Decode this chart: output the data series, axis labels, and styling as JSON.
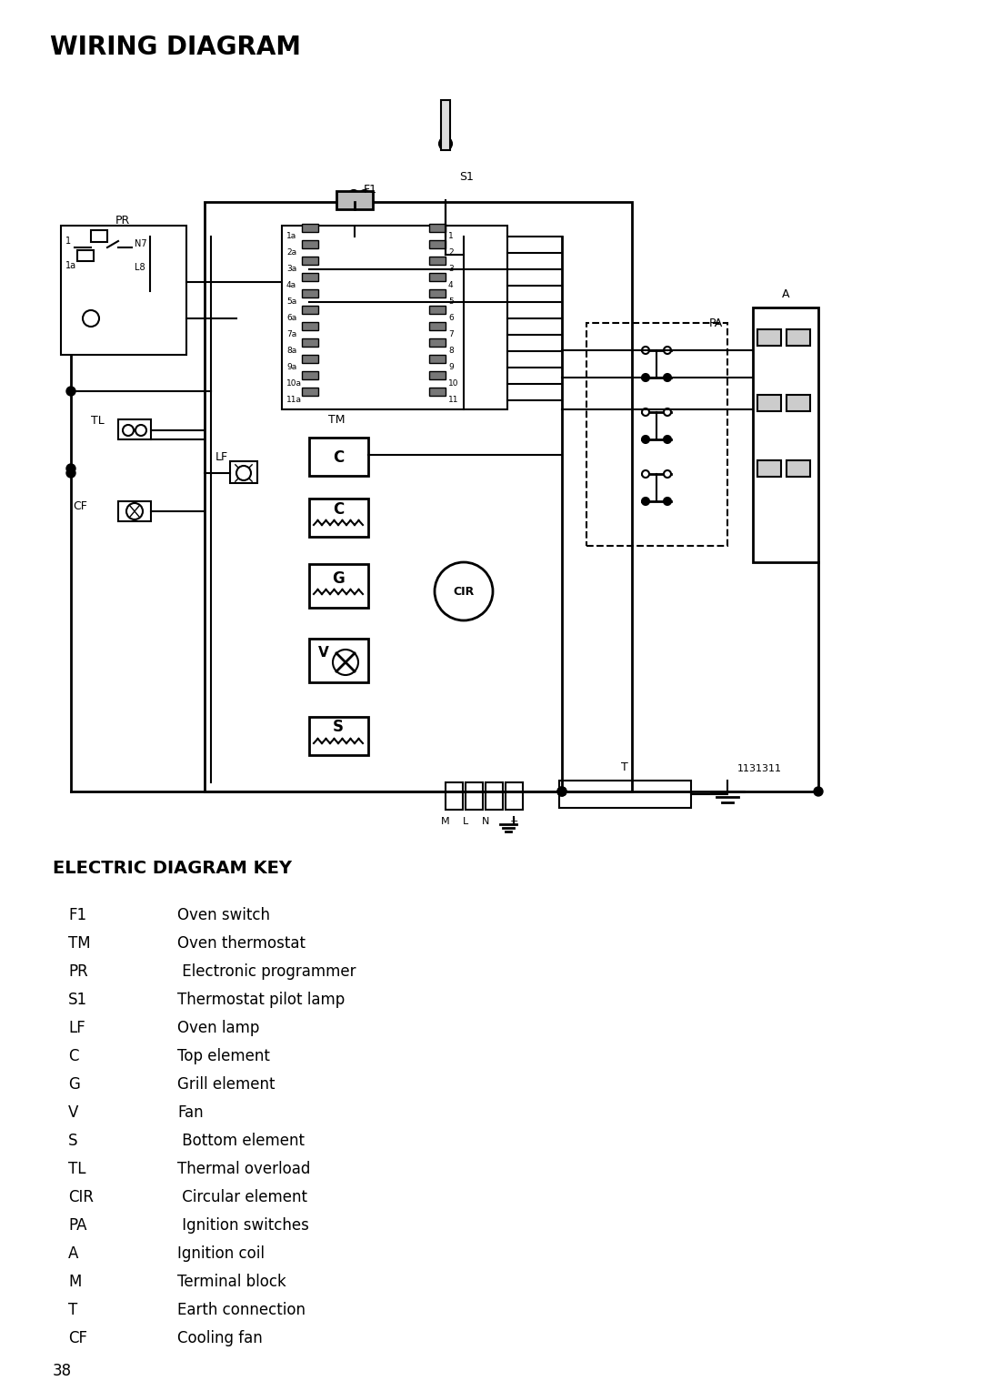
{
  "title": "WIRING DIAGRAM",
  "key_title": "ELECTRIC DIAGRAM KEY",
  "key_items": [
    [
      "F1",
      "Oven switch"
    ],
    [
      "TM",
      "Oven thermostat"
    ],
    [
      "PR",
      " Electronic programmer"
    ],
    [
      "S1",
      "Thermostat pilot lamp"
    ],
    [
      "LF",
      "Oven lamp"
    ],
    [
      "C",
      "Top element"
    ],
    [
      "G",
      "Grill element"
    ],
    [
      "V",
      "Fan"
    ],
    [
      "S",
      " Bottom element"
    ],
    [
      "TL",
      "Thermal overload"
    ],
    [
      "CIR",
      " Circular element"
    ],
    [
      "PA",
      " Ignition switches"
    ],
    [
      "A",
      "Ignition coil"
    ],
    [
      "M",
      "Terminal block"
    ],
    [
      "T",
      "Earth connection"
    ],
    [
      "CF",
      "Cooling fan"
    ]
  ],
  "page_number": "38",
  "diagram_number": "1131311",
  "bg_color": "#ffffff"
}
